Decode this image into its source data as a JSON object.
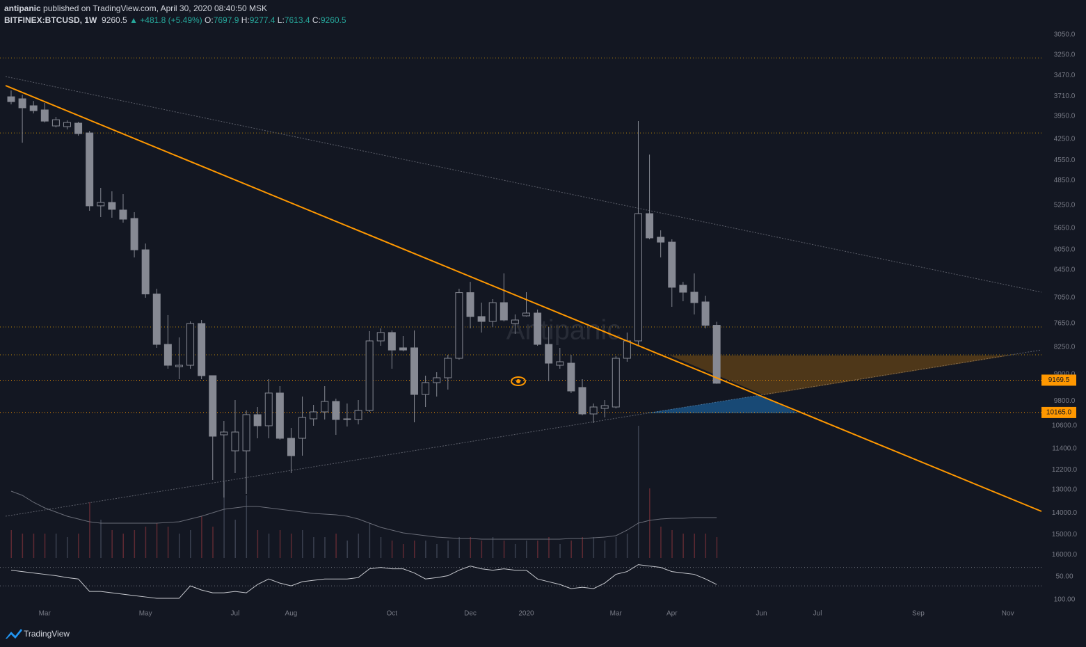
{
  "header": {
    "author": "antipanic",
    "published": "published on TradingView.com, April 30, 2020 08:40:50 MSK",
    "symbol": "BITFINEX:BTCUSD, 1W",
    "change": "▲ +481.8 (+5.49%)",
    "ohlc_labels": [
      "O:",
      "H:",
      "L:",
      "C:"
    ]
  },
  "watermark": "Antipanic",
  "brand": "TradingView",
  "chart_data": [
    {
      "type": "candlestick",
      "log": true,
      "invert": true,
      "grid": false,
      "up_color": "#868993",
      "volume_colors": [
        "#5e2a33",
        "#3b4150"
      ],
      "volume_ma_color": "#6a6d78",
      "level_color": "#b8860b",
      "price_line_color": "#ff9800",
      "ylim": [
        2983,
        16268
      ],
      "yticks": [
        {
          "value": 3050,
          "label": "3050.0"
        },
        {
          "value": 3250,
          "label": "3250.0"
        },
        {
          "value": 3470,
          "label": "3470.0"
        },
        {
          "value": 3710,
          "label": "3710.0"
        },
        {
          "value": 3950,
          "label": "3950.0"
        },
        {
          "value": 4250,
          "label": "4250.0"
        },
        {
          "value": 4550,
          "label": "4550.0"
        },
        {
          "value": 4850,
          "label": "4850.0"
        },
        {
          "value": 5250,
          "label": "5250.0"
        },
        {
          "value": 5650,
          "label": "5650.0"
        },
        {
          "value": 6050,
          "label": "6050.0"
        },
        {
          "value": 6450,
          "label": "6450.0"
        },
        {
          "value": 7050,
          "label": "7050.0"
        },
        {
          "value": 7650,
          "label": "7650.0"
        },
        {
          "value": 8250,
          "label": "8250.0"
        },
        {
          "value": 9000,
          "label": "9000.0"
        },
        {
          "value": 9800,
          "label": "9800.0"
        },
        {
          "value": 10600,
          "label": "10600.0"
        },
        {
          "value": 11400,
          "label": "11400.0"
        },
        {
          "value": 12200,
          "label": "12200.0"
        },
        {
          "value": 13000,
          "label": "13000.0"
        },
        {
          "value": 14000,
          "label": "14000.0"
        },
        {
          "value": 15000,
          "label": "15000.0"
        },
        {
          "value": 16000,
          "label": "16000.0"
        }
      ],
      "levels": [
        3283,
        4170,
        7740,
        8458
      ],
      "price_lines": [
        9169.5,
        {
          "value": 10165,
          "label": "10165.0"
        }
      ],
      "categories": [
        null,
        null,
        null,
        "Mar",
        null,
        null,
        null,
        null,
        null,
        null,
        null,
        null,
        "May",
        null,
        null,
        null,
        null,
        null,
        null,
        null,
        "Jul",
        null,
        null,
        null,
        null,
        "Aug",
        null,
        null,
        null,
        null,
        null,
        null,
        null,
        null,
        "Oct",
        null,
        null,
        null,
        null,
        null,
        null,
        "Dec",
        null,
        null,
        null,
        null,
        "2020",
        null,
        null,
        null,
        null,
        null,
        null,
        null,
        "Mar",
        null,
        null,
        null,
        null,
        "Apr",
        null,
        null,
        null,
        null,
        null,
        null,
        null,
        "Jun",
        null,
        null,
        null,
        null,
        "Jul",
        null,
        null,
        null,
        null,
        null,
        null,
        null,
        null,
        "Sep",
        null,
        null,
        null,
        null,
        null,
        null,
        null,
        "Nov",
        null,
        null,
        null
      ],
      "open": [
        3716,
        3740,
        3824,
        3875,
        4078,
        4087,
        4042,
        4170,
        5261,
        5204,
        5332,
        5477,
        6052,
        6967,
        8181,
        8783,
        8744,
        7655,
        9039,
        10915,
        11486,
        11486,
        10235,
        10604,
        9554,
        11036,
        11036,
        10372,
        10145,
        9813,
        10395,
        10395,
        10099,
        8091,
        7878,
        8272,
        8272,
        9597,
        9242,
        9100,
        8552,
        6937,
        7487,
        7604,
        7162,
        7655,
        7470,
        7404,
        8181,
        8744,
        8686,
        9386,
        10212,
        10033,
        9988,
        8552,
        8091,
        5393,
        5814,
        5906,
        6776,
        6928,
        7146,
        7697.9,
        null,
        null,
        null,
        null,
        null,
        null,
        null,
        null,
        null,
        null,
        null,
        null,
        null,
        null,
        null,
        null,
        null,
        null,
        null,
        null,
        null,
        null,
        null,
        null,
        null,
        null,
        null,
        null,
        null
      ],
      "high": [
        3807,
        4302,
        3918,
        4033,
        4097,
        4124,
        4207,
        5344,
        5452,
        5464,
        5550,
        6201,
        7052,
        8272,
        8841,
        9140,
        8841,
        9140,
        12608,
        13330,
        12330,
        13178,
        11036,
        11036,
        11085,
        12330,
        11665,
        10604,
        10395,
        10915,
        10630,
        10557,
        10145,
        8218,
        8841,
        8366,
        10487,
        9988,
        9661,
        9449,
        8590,
        7774,
        7878,
        7740,
        7604,
        7913,
        7487,
        8218,
        9200,
        8841,
        9554,
        10258,
        10510,
        10326,
        10033,
        8647,
        8218,
        5853,
        6201,
        7258,
        7130,
        7437,
        7774,
        9277.4,
        null,
        null,
        null,
        null,
        null,
        null,
        null,
        null,
        null,
        null,
        null,
        null,
        null,
        null,
        null,
        null,
        null,
        null,
        null,
        null,
        null,
        null,
        null,
        null,
        null,
        null,
        null,
        null,
        null
      ],
      "low": [
        3642,
        3691,
        3766,
        3790,
        3963,
        4007,
        4024,
        4143,
        4968,
        5023,
        5068,
        5368,
        5932,
        6852,
        7453,
        8002,
        7604,
        7570,
        9039,
        10441,
        9769,
        10099,
        9988,
        9140,
        9345,
        10675,
        9661,
        9922,
        9345,
        9726,
        9878,
        9769,
        7843,
        7774,
        7826,
        7966,
        7826,
        9039,
        8940,
        8458,
        6852,
        6703,
        7162,
        7083,
        6525,
        7437,
        6928,
        7323,
        7740,
        8272,
        8458,
        9140,
        9878,
        9769,
        8496,
        7878,
        4015,
        4468,
        5688,
        5853,
        6703,
        6525,
        7005,
        7613.4,
        null,
        null,
        null,
        null,
        null,
        null,
        null,
        null,
        null,
        null,
        null,
        null,
        null,
        null,
        null,
        null,
        null,
        null,
        null,
        null,
        null,
        null,
        null,
        null,
        null,
        null,
        null,
        null,
        null
      ],
      "close": [
        3774,
        3849,
        3884,
        4016,
        3998,
        4033,
        4179,
        5261,
        5204,
        5320,
        5489,
        6052,
        6967,
        8181,
        8744,
        8744,
        7655,
        9039,
        10963,
        10818,
        10818,
        10235,
        10604,
        9554,
        11036,
        11665,
        10326,
        10145,
        9813,
        10395,
        10372,
        10099,
        8091,
        7878,
        8330,
        8330,
        9597,
        9242,
        9100,
        8552,
        6937,
        7487,
        7604,
        7162,
        7570,
        7570,
        7404,
        8181,
        8686,
        8647,
        9491,
        10212,
        9988,
        9944,
        8552,
        8091,
        5393,
        5827,
        5906,
        6820,
        6928,
        7162,
        7698,
        9260.5,
        null,
        null,
        null,
        null,
        null,
        null,
        null,
        null,
        null,
        null,
        null,
        null,
        null,
        null,
        null,
        null,
        null,
        null,
        null,
        null,
        null,
        null,
        null,
        null,
        null,
        null,
        null,
        null,
        null
      ],
      "volume": [
        40,
        35,
        35,
        35,
        35,
        30,
        35,
        80,
        55,
        40,
        35,
        40,
        45,
        50,
        45,
        35,
        40,
        60,
        45,
        110,
        55,
        90,
        40,
        35,
        40,
        35,
        40,
        30,
        30,
        35,
        25,
        35,
        50,
        30,
        25,
        20,
        25,
        25,
        20,
        25,
        30,
        30,
        25,
        30,
        25,
        20,
        25,
        25,
        30,
        20,
        25,
        30,
        30,
        25,
        30,
        35,
        190,
        100,
        45,
        40,
        35,
        35,
        35,
        30,
        null,
        null,
        null,
        null,
        null,
        null,
        null,
        null,
        null,
        null,
        null,
        null,
        null,
        null,
        null,
        null,
        null,
        null,
        null,
        null,
        null,
        null,
        null,
        null,
        null,
        null,
        null,
        null,
        null
      ],
      "volume_ma": [
        96,
        90,
        80,
        72,
        66,
        60,
        56,
        52,
        50,
        50,
        50,
        50,
        50,
        50,
        51,
        52,
        56,
        60,
        65,
        70,
        72,
        74,
        74,
        72,
        70,
        68,
        66,
        64,
        63,
        62,
        60,
        56,
        50,
        44,
        40,
        36,
        34,
        32,
        30,
        29,
        28,
        28,
        27,
        27,
        27,
        27,
        27,
        27,
        27,
        27,
        28,
        28,
        29,
        30,
        32,
        40,
        50,
        54,
        56,
        57,
        57,
        58,
        58,
        58,
        null,
        null,
        null,
        null,
        null,
        null,
        null,
        null,
        null,
        null,
        null,
        null,
        null,
        null,
        null,
        null,
        null,
        null,
        null,
        null,
        null,
        null,
        null,
        null,
        null,
        null,
        null,
        null,
        null
      ]
    },
    {
      "type": "line",
      "invert": true,
      "color": "#c8cad0",
      "band_color": "#6a6d78",
      "ylim": [
        14,
        112
      ],
      "yticks": [
        {
          "value": 50,
          "label": "50.00"
        },
        {
          "value": 100,
          "label": "100.00"
        }
      ],
      "bands": [
        30,
        70
      ],
      "values": [
        36,
        39,
        42,
        45,
        48,
        52,
        55,
        82,
        82,
        85,
        88,
        91,
        94,
        97,
        97,
        97,
        70,
        79,
        85,
        85,
        82,
        85,
        67,
        55,
        64,
        70,
        61,
        58,
        55,
        55,
        55,
        52,
        33,
        30,
        33,
        33,
        42,
        55,
        52,
        48,
        36,
        27,
        33,
        36,
        33,
        36,
        36,
        55,
        61,
        67,
        76,
        73,
        76,
        64,
        45,
        39,
        24,
        27,
        30,
        39,
        42,
        45,
        55,
        67,
        null,
        null,
        null,
        null,
        null,
        null,
        null,
        null,
        null,
        null,
        null,
        null,
        null,
        null,
        null,
        null,
        null,
        null,
        null,
        null,
        null,
        null,
        null,
        null,
        null,
        null,
        null,
        null,
        null
      ]
    }
  ]
}
